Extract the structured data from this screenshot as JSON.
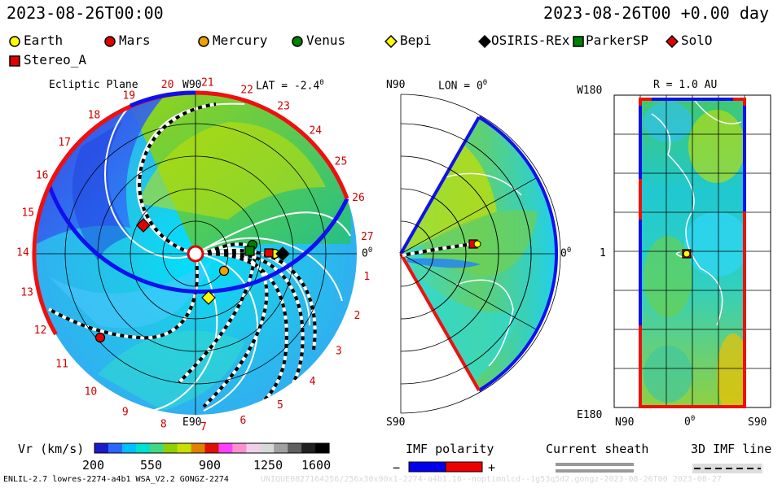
{
  "header": {
    "timestamp_left": "2023-08-26T00:00",
    "timestamp_right": "2023-08-26T00 +0.00 day"
  },
  "legend": {
    "items": [
      {
        "label": "Earth",
        "marker": "circle",
        "color": "#ffff00"
      },
      {
        "label": "Mars",
        "marker": "circle",
        "color": "#e00000"
      },
      {
        "label": "Mercury",
        "marker": "circle",
        "color": "#f0a000"
      },
      {
        "label": "Venus",
        "marker": "circle",
        "color": "#008000"
      },
      {
        "label": "Bepi",
        "marker": "diamond",
        "color": "#ffff00"
      },
      {
        "label": "OSIRIS-REx",
        "marker": "diamond",
        "color": "#000000"
      },
      {
        "label": "ParkerSP",
        "marker": "square",
        "color": "#008000"
      },
      {
        "label": "SolO",
        "marker": "diamond",
        "color": "#e00000"
      },
      {
        "label": "Stereo_A",
        "marker": "square",
        "color": "#e00000"
      }
    ]
  },
  "panel_ecliptic": {
    "title": "Ecliptic Plane",
    "top_label": "W90",
    "bottom_label": "E90",
    "right_label": "0",
    "lat_label": "LAT = -2.4",
    "degree_mark": "0",
    "carrington_labels": [
      "1",
      "2",
      "3",
      "4",
      "5",
      "6",
      "7",
      "8",
      "9",
      "10",
      "11",
      "12",
      "13",
      "14",
      "15",
      "16",
      "17",
      "18",
      "19",
      "20",
      "21",
      "22",
      "23",
      "24",
      "25",
      "26",
      "27"
    ]
  },
  "panel_meridional": {
    "top_label": "N90",
    "bottom_label": "S90",
    "lon_label": "LON = 0",
    "degree_mark": "0",
    "right_label": "0"
  },
  "panel_rmap": {
    "title": "R = 1.0 AU",
    "top_left_label": "W180",
    "bottom_left_label": "E180",
    "mid_left_label": "1",
    "bottom_labels": [
      "N90",
      "0",
      "S90"
    ],
    "degree_mark": "0"
  },
  "colorbar": {
    "label": "Vr (km/s)",
    "ticks": [
      "200",
      "550",
      "900",
      "1250",
      "1600"
    ],
    "colors": [
      "#1a1acc",
      "#2a66ff",
      "#00bfff",
      "#00e0d0",
      "#40d880",
      "#90d000",
      "#c8e000",
      "#e08000",
      "#e01000",
      "#ff40ff",
      "#ff90d0",
      "#f0d0e8",
      "#d8d8d8",
      "#a0a0a0",
      "#606060",
      "#202020",
      "#000000"
    ]
  },
  "imf_legend": {
    "label": "IMF polarity",
    "minus": "−",
    "plus": "+",
    "neg_color": "#0000ee",
    "pos_color": "#ee0000"
  },
  "sheath_legend": {
    "label": "Current sheath"
  },
  "imf_line_legend": {
    "label": "3D IMF line"
  },
  "footer": {
    "left": "ENLIL-2.7 lowres-2274-a4b1 WSA_V2.2 GONGZ-2274",
    "right": "UNIQUE0827164256/256x30x90x1-2274-a4b1.16--noptimnlcd--1g53q5d2.gongz-2023-08-26T00  2023-08-27"
  }
}
